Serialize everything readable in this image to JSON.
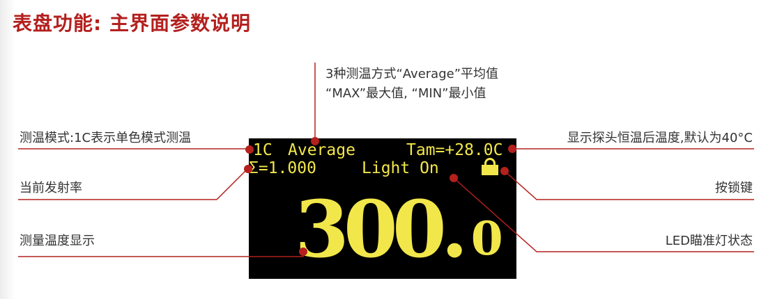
{
  "title": "表盘功能: 主界面参数说明",
  "annotations": {
    "top_line1": "3种测温方式“Average”平均值",
    "top_line2": "“MAX”最大值, “MIN”最小值",
    "mode": "测温模式:1C表示单色模式测温",
    "emissivity": "当前发射率",
    "measured": "测量温度显示",
    "ambient": "显示探头恒温后温度,默认为40°C",
    "lock": "按锁键",
    "led": "LED瞄准灯状态"
  },
  "screen": {
    "mode": "1C",
    "method": "Average",
    "tam": "Tam=+28.0C",
    "emissivity": "Σ=1.000",
    "light": "Light On",
    "value_main": "300.",
    "value_decimal": "0",
    "lock_icon": "lock-icon"
  },
  "colors": {
    "accent": "#b3201e",
    "screen_bg": "#000000",
    "screen_text": "#f2e74a"
  }
}
